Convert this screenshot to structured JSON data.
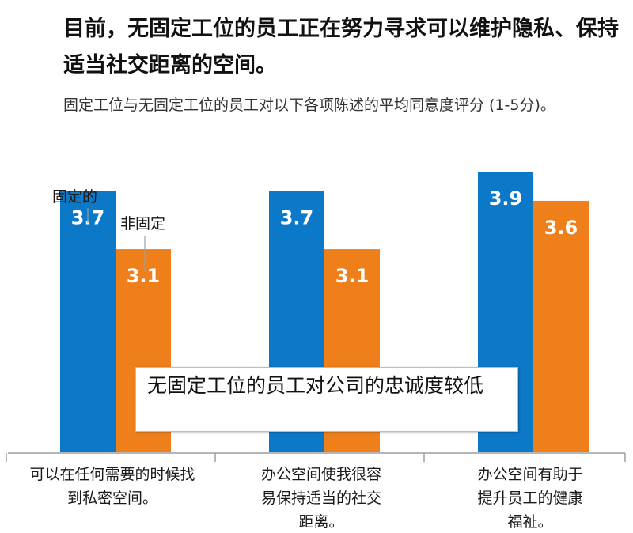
{
  "header": {
    "title": "目前，无固定工位的员工正在努力寻求可以维护隐私、保持适当社交距离的空间。",
    "subtitle": "固定工位与无固定工位的员工对以下各项陈述的平均同意度评分 (1-5分)。"
  },
  "annotation": "无固定工位的员工对公司的忠诚度较低",
  "colors": {
    "fixed": "#0b78c8",
    "nonfixed": "#ef7f1a",
    "axis": "#9e9e9e"
  },
  "chart_data": {
    "type": "bar",
    "categories": [
      [
        "可以在任何需要的时候找",
        "到私密空间。"
      ],
      [
        "办公空间使我很容",
        "易保持适当的社交",
        "距离。"
      ],
      [
        "办公空间有助于",
        "提升员工的健康",
        "福祉。"
      ]
    ],
    "series": [
      {
        "name": "固定的",
        "values": [
          3.7,
          3.7,
          3.9
        ]
      },
      {
        "name": "非固定",
        "values": [
          3.1,
          3.1,
          3.6
        ]
      }
    ],
    "ylim": [
      1,
      4
    ],
    "grid": false,
    "legend": "direct labels on first group"
  }
}
